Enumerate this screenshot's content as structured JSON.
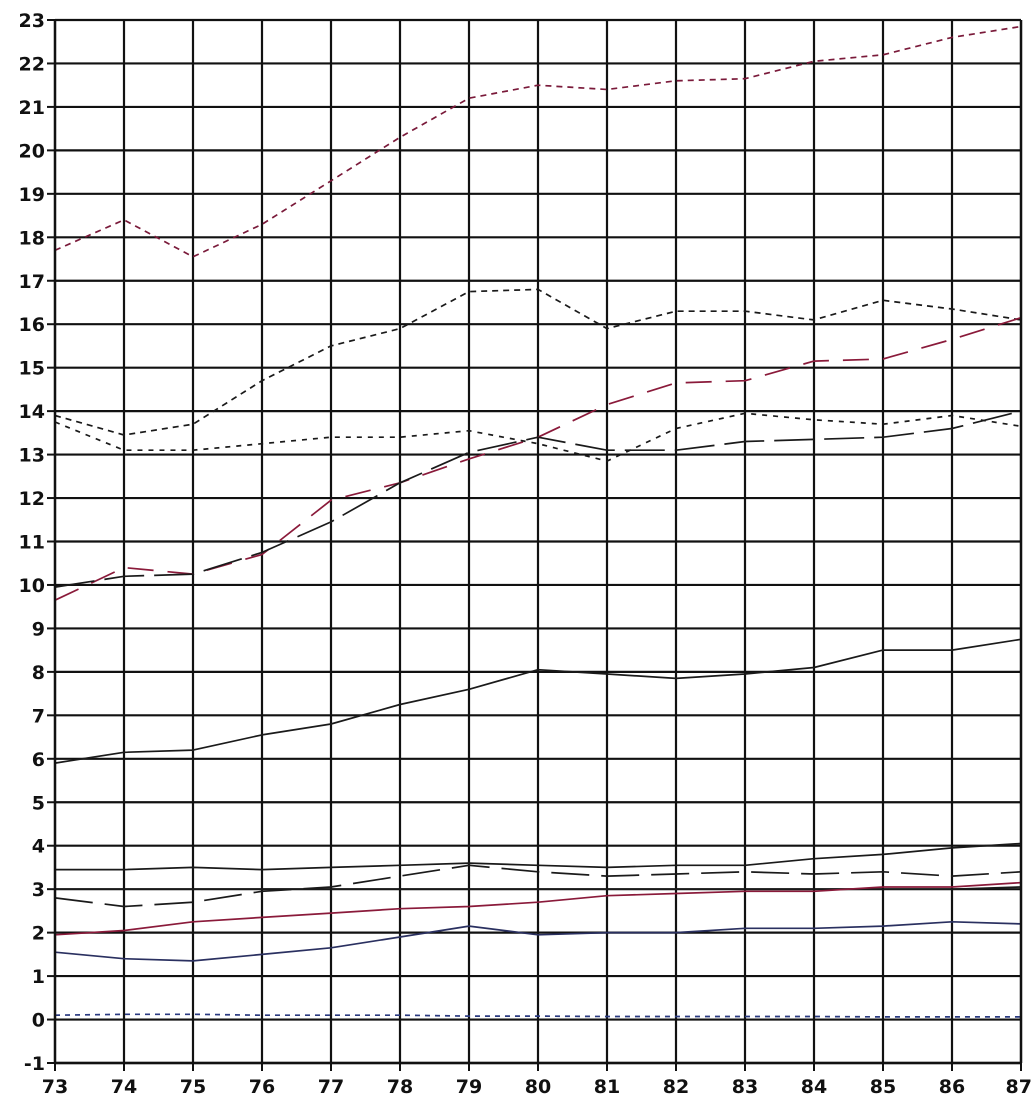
{
  "chart_data": {
    "type": "line",
    "title": "",
    "xlabel": "",
    "ylabel": "",
    "x": [
      73,
      74,
      75,
      76,
      77,
      78,
      79,
      80,
      81,
      82,
      83,
      84,
      85,
      86,
      87
    ],
    "xlim": [
      73,
      87
    ],
    "ylim": [
      -1,
      23
    ],
    "x_tick_labels": [
      "73",
      "74",
      "75",
      "76",
      "77",
      "78",
      "79",
      "80",
      "81",
      "82",
      "83",
      "84",
      "85",
      "86",
      "87"
    ],
    "y_tick_labels": [
      "-1",
      "0",
      "1",
      "2",
      "3",
      "4",
      "5",
      "6",
      "7",
      "8",
      "9",
      "10",
      "11",
      "12",
      "13",
      "14",
      "15",
      "16",
      "17",
      "18",
      "19",
      "20",
      "21",
      "22",
      "23"
    ],
    "grid": true,
    "legend": "none",
    "series": [
      {
        "color": "#7a1a3a",
        "dash": "6 5",
        "values": [
          17.7,
          18.4,
          17.55,
          18.3,
          19.3,
          20.3,
          21.2,
          21.5,
          21.4,
          21.6,
          21.65,
          22.05,
          22.2,
          22.6,
          22.85
        ]
      },
      {
        "color": "#1a1a1a",
        "dash": "6 5",
        "values": [
          13.9,
          13.45,
          13.7,
          14.7,
          15.5,
          15.9,
          16.75,
          16.8,
          15.9,
          16.3,
          16.3,
          16.1,
          16.55,
          16.35,
          16.1
        ]
      },
      {
        "color": "#8a1a3a",
        "dash": "26 14",
        "values": [
          9.65,
          10.4,
          10.25,
          10.7,
          11.95,
          12.35,
          12.9,
          13.4,
          14.15,
          14.65,
          14.7,
          15.15,
          15.2,
          15.65,
          16.15
        ]
      },
      {
        "color": "#1a1a1a",
        "dash": "5 6",
        "values": [
          13.75,
          13.1,
          13.1,
          13.25,
          13.4,
          13.4,
          13.55,
          13.25,
          12.85,
          13.6,
          13.95,
          13.8,
          13.7,
          13.9,
          13.65
        ]
      },
      {
        "color": "#1a1a1a",
        "dash": "40 10",
        "values": [
          9.95,
          10.2,
          10.25,
          10.75,
          11.45,
          12.35,
          13.05,
          13.4,
          13.1,
          13.1,
          13.3,
          13.35,
          13.4,
          13.6,
          14.0
        ]
      },
      {
        "color": "#1a1a1a",
        "dash": "",
        "values": [
          5.9,
          6.15,
          6.2,
          6.55,
          6.8,
          7.25,
          7.6,
          8.05,
          7.95,
          7.85,
          7.95,
          8.1,
          8.5,
          8.5,
          8.75
        ]
      },
      {
        "color": "#1a1a1a",
        "dash": "",
        "values": [
          3.45,
          3.45,
          3.5,
          3.45,
          3.5,
          3.55,
          3.6,
          3.55,
          3.5,
          3.55,
          3.55,
          3.7,
          3.8,
          3.95,
          4.05
        ]
      },
      {
        "color": "#1a1a1a",
        "dash": "38 12",
        "values": [
          2.8,
          2.6,
          2.7,
          2.95,
          3.05,
          3.3,
          3.55,
          3.4,
          3.3,
          3.35,
          3.4,
          3.35,
          3.4,
          3.3,
          3.4
        ]
      },
      {
        "color": "#1a1a1a",
        "dash": "",
        "values": [
          3.0,
          3.0,
          3.0,
          3.0,
          3.0,
          3.0,
          3.0,
          3.0,
          3.0,
          3.0,
          3.0,
          3.0,
          3.0,
          3.0,
          3.05
        ]
      },
      {
        "color": "#8a1a3a",
        "dash": "",
        "values": [
          1.95,
          2.05,
          2.25,
          2.35,
          2.45,
          2.55,
          2.6,
          2.7,
          2.85,
          2.9,
          2.95,
          2.95,
          3.05,
          3.05,
          3.15
        ]
      },
      {
        "color": "#2a3060",
        "dash": "",
        "values": [
          1.55,
          1.4,
          1.35,
          1.5,
          1.65,
          1.9,
          2.15,
          1.95,
          2.0,
          2.0,
          2.1,
          2.1,
          2.15,
          2.25,
          2.2
        ]
      },
      {
        "color": "#2a3a80",
        "dash": "5 5",
        "values": [
          0.1,
          0.12,
          0.12,
          0.1,
          0.1,
          0.1,
          0.08,
          0.08,
          0.07,
          0.07,
          0.07,
          0.07,
          0.06,
          0.06,
          0.06
        ]
      }
    ]
  }
}
